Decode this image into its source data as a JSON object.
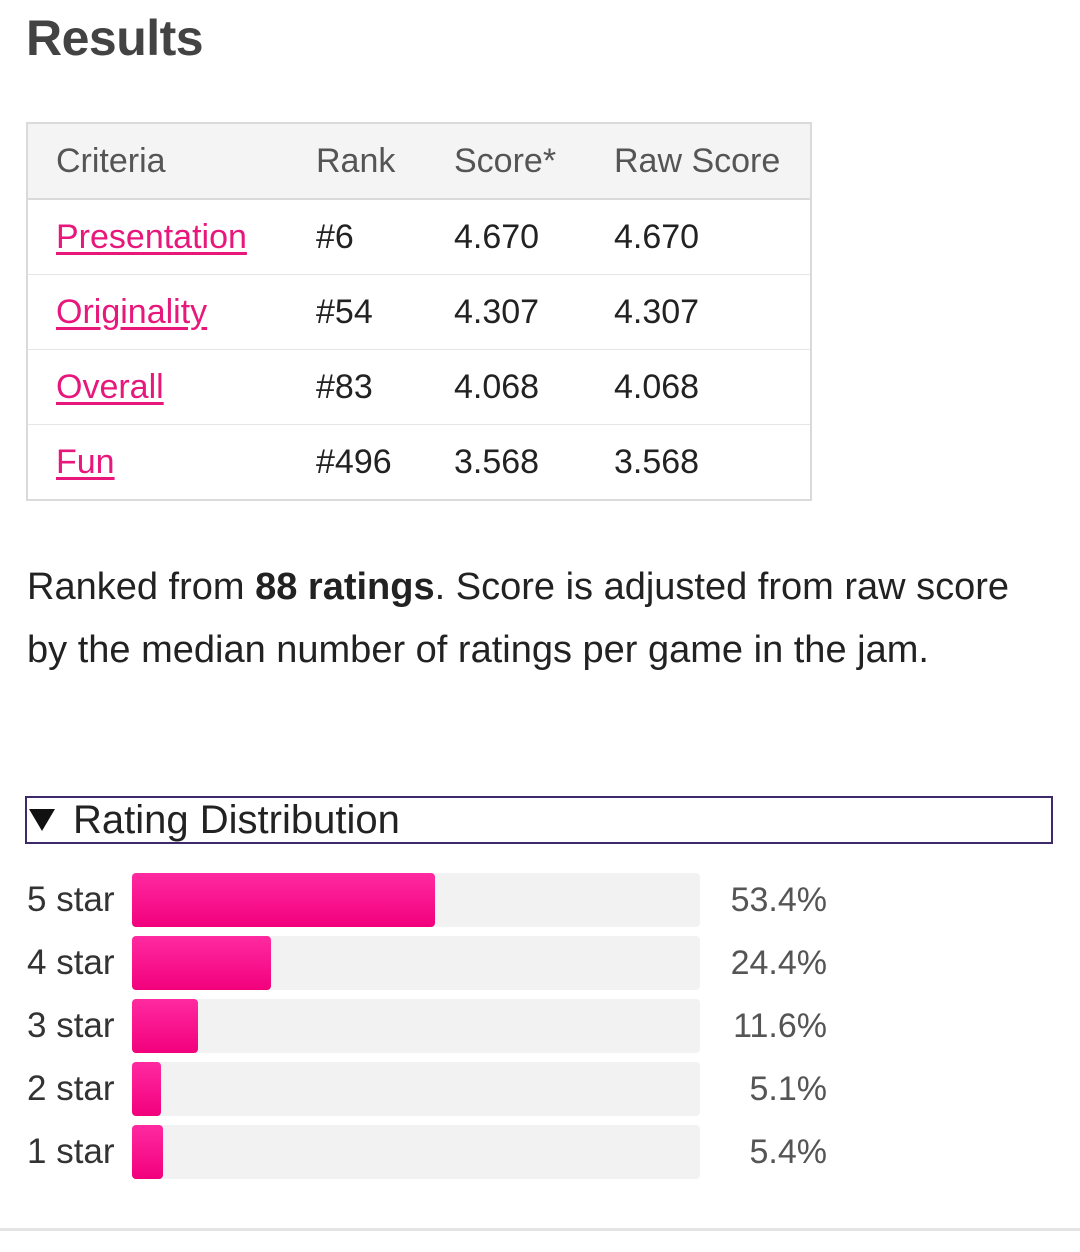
{
  "page": {
    "title": "Results"
  },
  "table": {
    "headers": {
      "criteria": "Criteria",
      "rank": "Rank",
      "score": "Score*",
      "raw_score": "Raw Score"
    },
    "rows": [
      {
        "criteria": "Presentation",
        "rank": "#6",
        "score": "4.670",
        "raw_score": "4.670"
      },
      {
        "criteria": "Originality",
        "rank": "#54",
        "score": "4.307",
        "raw_score": "4.307"
      },
      {
        "criteria": "Overall",
        "rank": "#83",
        "score": "4.068",
        "raw_score": "4.068"
      },
      {
        "criteria": "Fun",
        "rank": "#496",
        "score": "3.568",
        "raw_score": "3.568"
      }
    ]
  },
  "summary": {
    "prefix": "Ranked from ",
    "ratings": "88 ratings",
    "suffix": ". Score is adjusted from raw score by the median number of ratings per game in the jam."
  },
  "distribution": {
    "title": "Rating Distribution",
    "expanded": true,
    "bars": [
      {
        "label": "5 star",
        "percent_text": "53.4%",
        "percent": 53.4
      },
      {
        "label": "4 star",
        "percent_text": "24.4%",
        "percent": 24.4
      },
      {
        "label": "3 star",
        "percent_text": "11.6%",
        "percent": 11.6
      },
      {
        "label": "2 star",
        "percent_text": "5.1%",
        "percent": 5.1
      },
      {
        "label": "1 star",
        "percent_text": "5.4%",
        "percent": 5.4
      }
    ]
  },
  "colors": {
    "accent": "#e8177c",
    "bar_fill": "#f7007f",
    "bar_track": "#f2f2f2",
    "details_border": "#3d2a6a"
  }
}
